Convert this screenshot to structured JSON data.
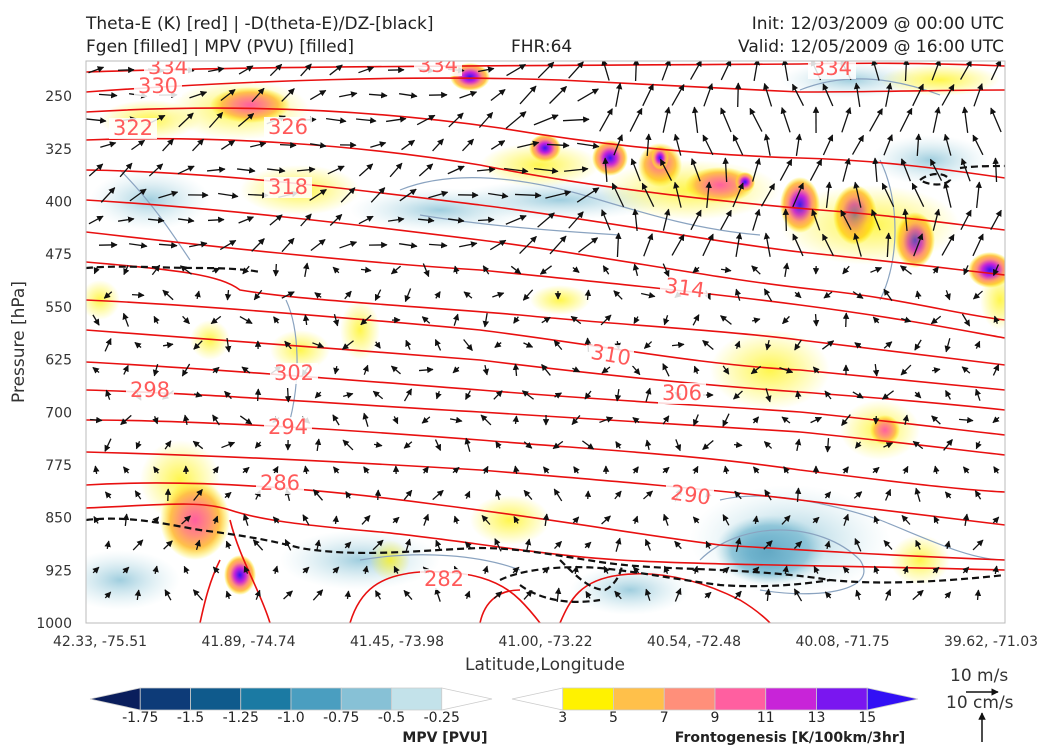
{
  "header": {
    "title_line1": "Theta-E (K) [red] | -D(theta-E)/DZ-[black]",
    "title_line2": "Fgen [filled] | MPV (PVU) [filled]",
    "fhr": "FHR:64",
    "init": "Init: 12/03/2009 @ 00:00 UTC",
    "valid": "Valid: 12/05/2009 @ 16:00 UTC"
  },
  "chart_data": {
    "type": "contour",
    "xlabel": "Latitude,Longitude",
    "ylabel": "Pressure [hPa]",
    "x_ticks": [
      "42.33, -75.51",
      "41.89, -74.74",
      "41.45, -73.98",
      "41.00, -73.22",
      "40.54, -72.48",
      "40.08, -71.75",
      "39.62, -71.03"
    ],
    "y_ticks": [
      250,
      325,
      400,
      475,
      550,
      625,
      700,
      775,
      850,
      925,
      1000
    ],
    "ylim": [
      1000,
      200
    ],
    "theta_e_contour_labels": [
      "334",
      "330",
      "322",
      "326",
      "318",
      "314",
      "310",
      "306",
      "302",
      "298",
      "294",
      "290",
      "286",
      "282",
      "334",
      "334"
    ],
    "colorbars": [
      {
        "title": "MPV [PVU]",
        "tick_labels": [
          "-1.75",
          "-1.5",
          "-1.25",
          "-1.0",
          "-0.75",
          "-0.5",
          "-0.25"
        ],
        "colors": [
          "#0a1e5c",
          "#0d3b78",
          "#0f5a8c",
          "#1b7aa3",
          "#4a9ec0",
          "#87c1d6",
          "#c3e2ea",
          "#ffffff"
        ]
      },
      {
        "title": "Frontogenesis [K/100km/3hr]",
        "tick_labels": [
          "3",
          "5",
          "7",
          "9",
          "11",
          "13",
          "15"
        ],
        "colors": [
          "#ffffff",
          "#fff200",
          "#ffc04a",
          "#ff8f7a",
          "#ff5fa0",
          "#c824d8",
          "#7a16f0",
          "#3210f5"
        ]
      }
    ],
    "wind_reference": {
      "label1": "10 m/s",
      "label2": "10 cm/s"
    }
  }
}
